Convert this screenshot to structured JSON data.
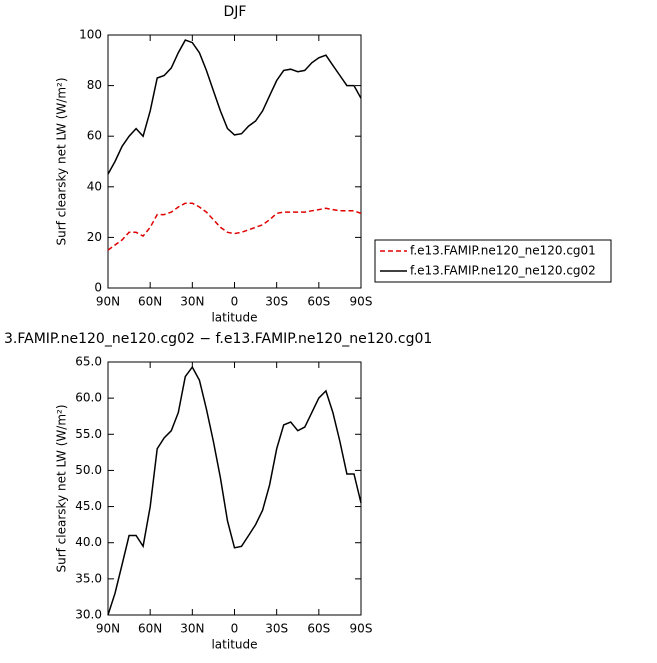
{
  "chart_data": [
    {
      "type": "line",
      "title": "DJF",
      "xlabel": "latitude",
      "ylabel": "Surf clearsky net LW (W/m²)",
      "x": [
        90,
        85,
        80,
        75,
        70,
        65,
        60,
        55,
        50,
        45,
        40,
        35,
        30,
        25,
        20,
        15,
        10,
        5,
        0,
        -5,
        -10,
        -15,
        -20,
        -25,
        -30,
        -35,
        -40,
        -45,
        -50,
        -55,
        -60,
        -65,
        -70,
        -75,
        -80,
        -85,
        -90
      ],
      "xlim": [
        90,
        -90
      ],
      "xticks": [
        {
          "value": 90,
          "label": "90N"
        },
        {
          "value": 60,
          "label": "60N"
        },
        {
          "value": 30,
          "label": "30N"
        },
        0,
        {
          "value": -30,
          "label": "30S"
        },
        {
          "value": -60,
          "label": "60S"
        },
        {
          "value": -90,
          "label": "90S"
        }
      ],
      "ylim": [
        0,
        100
      ],
      "yticks": [
        0,
        20,
        40,
        60,
        80,
        100
      ],
      "legend": "right",
      "series": [
        {
          "name": "f.e13.FAMIP.ne120_ne120.cg01",
          "color": "#e00000",
          "dashed": true,
          "values": [
            15,
            17,
            19,
            22,
            22,
            20.5,
            24,
            29,
            29,
            30,
            32,
            33.5,
            33.5,
            32,
            30,
            27,
            24,
            22,
            21.5,
            22,
            23,
            24,
            25,
            27,
            29.5,
            30,
            30,
            30,
            30,
            30.5,
            31,
            31.5,
            31,
            30.5,
            30.5,
            30.5,
            29.5
          ]
        },
        {
          "name": "f.e13.FAMIP.ne120_ne120.cg02",
          "color": "#000000",
          "dashed": false,
          "values": [
            45,
            50,
            56,
            60,
            63,
            60,
            70,
            83,
            84,
            87,
            93,
            98,
            97,
            93,
            86,
            78,
            70,
            63,
            60.5,
            61,
            64,
            66,
            70,
            76,
            82,
            86,
            86.5,
            85.5,
            86,
            89,
            91,
            92,
            88,
            84,
            80,
            80,
            75
          ]
        }
      ]
    },
    {
      "type": "line",
      "title": "3.FAMIP.ne120_ne120.cg02 − f.e13.FAMIP.ne120_ne120.cg01",
      "xlabel": "latitude",
      "ylabel": "Surf clearsky net LW (W/m²)",
      "x": [
        90,
        85,
        80,
        75,
        70,
        65,
        60,
        55,
        50,
        45,
        40,
        35,
        30,
        25,
        20,
        15,
        10,
        5,
        0,
        -5,
        -10,
        -15,
        -20,
        -25,
        -30,
        -35,
        -40,
        -45,
        -50,
        -55,
        -60,
        -65,
        -70,
        -75,
        -80,
        -85,
        -90
      ],
      "xlim": [
        90,
        -90
      ],
      "xticks": [
        {
          "value": 90,
          "label": "90N"
        },
        {
          "value": 60,
          "label": "60N"
        },
        {
          "value": 30,
          "label": "30N"
        },
        0,
        {
          "value": -30,
          "label": "30S"
        },
        {
          "value": -60,
          "label": "60S"
        },
        {
          "value": -90,
          "label": "90S"
        }
      ],
      "ylim": [
        30,
        65
      ],
      "yticks": [
        {
          "value": 30,
          "label": "30.0"
        },
        {
          "value": 35,
          "label": "35.0"
        },
        {
          "value": 40,
          "label": "40.0"
        },
        {
          "value": 45,
          "label": "45.0"
        },
        {
          "value": 50,
          "label": "50.0"
        },
        {
          "value": 55,
          "label": "55.0"
        },
        {
          "value": 60,
          "label": "60.0"
        },
        {
          "value": 65,
          "label": "65.0"
        }
      ],
      "color": "#000000",
      "values": [
        30,
        33,
        37,
        41,
        41,
        39.5,
        45,
        53,
        54.5,
        55.5,
        58,
        63,
        64.3,
        62.5,
        58.5,
        54,
        49,
        43,
        39.3,
        39.5,
        41,
        42.5,
        44.5,
        48,
        53,
        56.3,
        56.7,
        55.5,
        56,
        58,
        60,
        61,
        58,
        54,
        49.5,
        49.5,
        45.5
      ]
    }
  ]
}
